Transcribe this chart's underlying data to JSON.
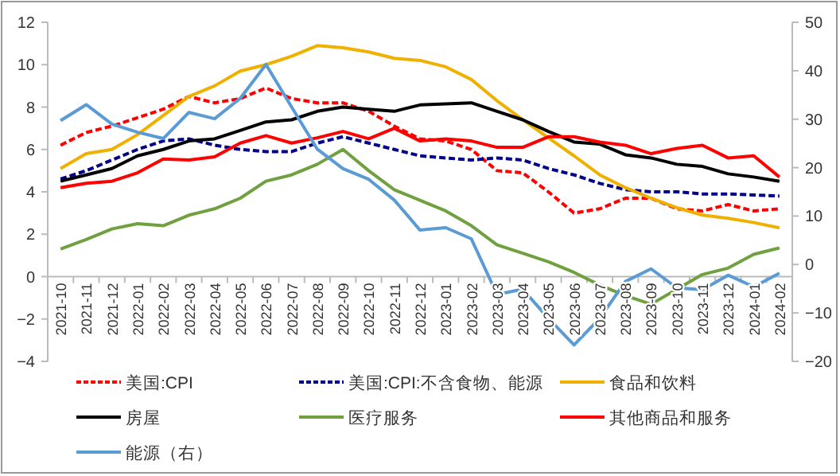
{
  "chart_data": {
    "type": "line",
    "categories": [
      "2021-10",
      "2021-11",
      "2021-12",
      "2022-01",
      "2022-02",
      "2022-03",
      "2022-04",
      "2022-05",
      "2022-06",
      "2022-07",
      "2022-08",
      "2022-09",
      "2022-10",
      "2022-11",
      "2022-12",
      "2023-01",
      "2023-02",
      "2023-03",
      "2023-04",
      "2023-05",
      "2023-06",
      "2023-07",
      "2023-08",
      "2023-09",
      "2023-10",
      "2023-11",
      "2023-12",
      "2024-01",
      "2024-02"
    ],
    "ylim": [
      -4,
      12
    ],
    "yticks": [
      -4,
      -2,
      0,
      2,
      4,
      6,
      8,
      10,
      12
    ],
    "y2lim": [
      -20,
      50
    ],
    "y2ticks": [
      -20,
      -10,
      0,
      10,
      20,
      30,
      40,
      50
    ],
    "legend": "bottom",
    "grid": false,
    "series": [
      {
        "name": "美国:CPI",
        "color": "#ff0000",
        "line_style": "dashed",
        "values": [
          6.2,
          6.8,
          7.1,
          7.5,
          7.9,
          8.5,
          8.2,
          8.4,
          8.9,
          8.4,
          8.2,
          8.2,
          7.8,
          7.1,
          6.5,
          6.4,
          6.0,
          5.0,
          4.9,
          4.0,
          3.0,
          3.2,
          3.7,
          3.7,
          3.2,
          3.1,
          3.4,
          3.1,
          3.2
        ]
      },
      {
        "name": "美国:CPI:不含食物、能源",
        "color": "#00008b",
        "line_style": "dashed",
        "values": [
          4.6,
          5.0,
          5.5,
          6.0,
          6.4,
          6.5,
          6.2,
          6.0,
          5.9,
          5.9,
          6.3,
          6.6,
          6.3,
          6.0,
          5.7,
          5.6,
          5.5,
          5.6,
          5.5,
          5.1,
          4.8,
          4.4,
          4.1,
          4.0,
          4.0,
          3.9,
          3.9,
          3.85,
          3.8
        ]
      },
      {
        "name": "食品和饮料",
        "color": "#f0b000",
        "line_style": "solid",
        "values": [
          5.1,
          5.8,
          6.0,
          6.7,
          7.6,
          8.5,
          9.0,
          9.7,
          10.0,
          10.4,
          10.9,
          10.8,
          10.6,
          10.3,
          10.2,
          9.9,
          9.3,
          8.3,
          7.4,
          6.55,
          5.7,
          4.8,
          4.2,
          3.7,
          3.25,
          2.9,
          2.75,
          2.55,
          2.3
        ]
      },
      {
        "name": "房屋",
        "color": "#000000",
        "line_style": "solid",
        "values": [
          4.5,
          4.8,
          5.1,
          5.7,
          6.0,
          6.4,
          6.5,
          6.9,
          7.3,
          7.4,
          7.8,
          8.0,
          7.9,
          7.8,
          8.1,
          8.15,
          8.2,
          7.8,
          7.4,
          6.85,
          6.35,
          6.25,
          5.75,
          5.6,
          5.3,
          5.2,
          4.85,
          4.7,
          4.5
        ]
      },
      {
        "name": "医疗服务",
        "color": "#70a040",
        "line_style": "solid",
        "values": [
          1.3,
          1.75,
          2.25,
          2.5,
          2.4,
          2.9,
          3.2,
          3.7,
          4.5,
          4.8,
          5.3,
          6.0,
          5.0,
          4.1,
          3.6,
          3.1,
          2.4,
          1.5,
          1.1,
          0.7,
          0.2,
          -0.4,
          -0.9,
          -1.3,
          -0.6,
          0.1,
          0.4,
          1.05,
          1.35
        ]
      },
      {
        "name": "其他商品和服务",
        "color": "#ff0000",
        "line_style": "solid",
        "values": [
          4.2,
          4.4,
          4.5,
          4.9,
          5.55,
          5.5,
          5.65,
          6.3,
          6.65,
          6.3,
          6.55,
          6.85,
          6.5,
          7.0,
          6.4,
          6.5,
          6.4,
          6.1,
          6.1,
          6.6,
          6.6,
          6.35,
          6.2,
          5.8,
          6.05,
          6.2,
          5.6,
          5.7,
          4.7
        ]
      },
      {
        "name": "能源（右）",
        "color": "#5b9bd5",
        "line_style": "solid",
        "axis": "y2",
        "values": [
          29.7,
          33.0,
          29.0,
          27.3,
          26.0,
          31.4,
          30.1,
          34.3,
          41.3,
          32.5,
          23.8,
          19.8,
          17.6,
          13.3,
          7.1,
          7.6,
          5.3,
          -6.2,
          -5.1,
          -11.1,
          -16.6,
          -11.1,
          -3.5,
          -0.9,
          -4.8,
          -5.2,
          -2.2,
          -4.6,
          -1.8
        ]
      }
    ]
  }
}
